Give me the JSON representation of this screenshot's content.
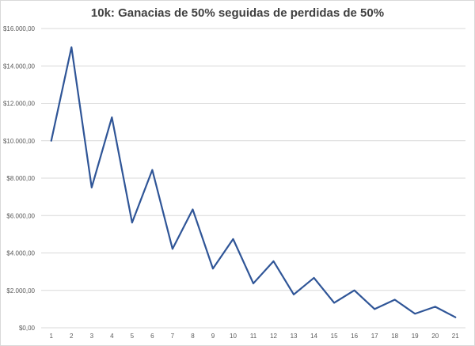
{
  "chart_data": {
    "type": "line",
    "title": "10k: Ganacias de 50% seguidas de perdidas de 50%",
    "xlabel": "",
    "ylabel": "",
    "x": [
      1,
      2,
      3,
      4,
      5,
      6,
      7,
      8,
      9,
      10,
      11,
      12,
      13,
      14,
      15,
      16,
      17,
      18,
      19,
      20,
      21
    ],
    "series": [
      {
        "values": [
          10000,
          15000,
          7500,
          11250,
          5625,
          8437.5,
          4218.75,
          6328.13,
          3164.06,
          4746.09,
          2373.05,
          3559.57,
          1779.79,
          2669.68,
          1334.84,
          2002.26,
          1001.13,
          1501.7,
          750.85,
          1126.27,
          563.14
        ],
        "color": "#2f5597"
      }
    ],
    "ylim": [
      0,
      16000
    ],
    "y_ticks": [
      0,
      2000,
      4000,
      6000,
      8000,
      10000,
      12000,
      14000,
      16000
    ],
    "y_tick_labels": [
      "$0,00",
      "$2.000,00",
      "$4.000,00",
      "$6.000,00",
      "$8.000,00",
      "$10.000,00",
      "$12.000,00",
      "$14.000,00",
      "$16.000,00"
    ],
    "x_tick_labels": [
      "1",
      "2",
      "3",
      "4",
      "5",
      "6",
      "7",
      "8",
      "9",
      "10",
      "11",
      "12",
      "13",
      "14",
      "15",
      "16",
      "17",
      "18",
      "19",
      "20",
      "21"
    ],
    "grid": true,
    "legend": "none",
    "gridline_color": "#d9d9d9"
  }
}
